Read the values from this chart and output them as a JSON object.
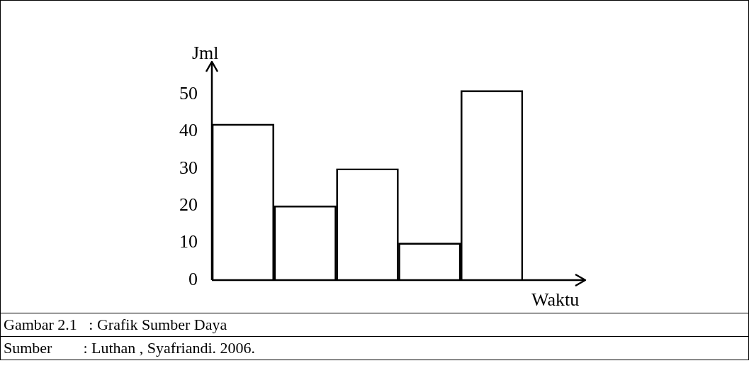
{
  "chart_data": {
    "type": "bar",
    "xlabel": "Waktu",
    "ylabel": "Jml",
    "categories": [
      null,
      null,
      null,
      null,
      null
    ],
    "values": [
      42,
      20,
      30,
      10,
      51
    ],
    "color": "#000000",
    "ylim": [
      0,
      58
    ],
    "yticks": [
      0,
      10,
      20,
      30,
      40,
      50
    ],
    "grid": false,
    "legend": false,
    "tick_labels": "y",
    "annotations": [
      "Gambar 2.1   : Grafik Sumber Daya",
      "Sumber        : Luthan , Syafriandi. 2006."
    ]
  }
}
